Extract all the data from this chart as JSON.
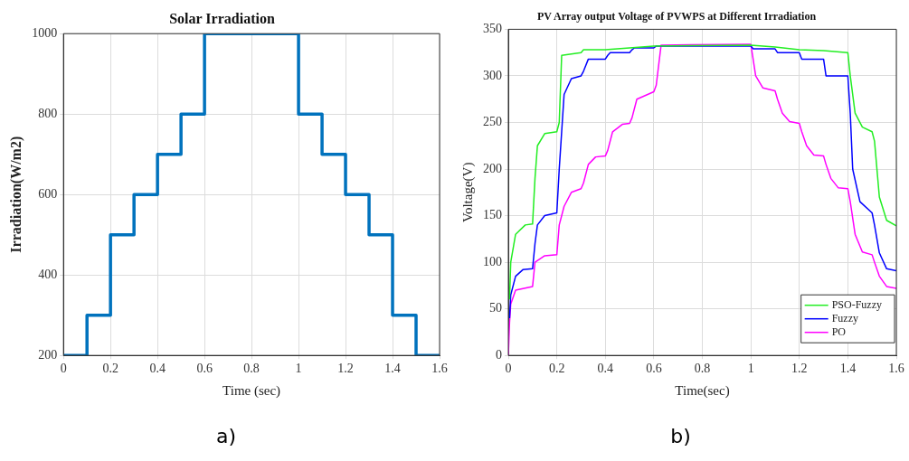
{
  "chart_data": [
    {
      "type": "step",
      "title": "Solar Irradiation",
      "xlabel": "Time (sec)",
      "ylabel": "Irradiation(W/m2)",
      "x": [
        0,
        0.1,
        0.2,
        0.3,
        0.4,
        0.5,
        0.6,
        1.0,
        1.1,
        1.2,
        1.3,
        1.4,
        1.5,
        1.6
      ],
      "values": [
        200,
        300,
        500,
        600,
        700,
        800,
        1000,
        800,
        700,
        600,
        500,
        300,
        200,
        200
      ],
      "color": "#0072bd",
      "xlim": [
        0,
        1.6
      ],
      "xticks": [
        0,
        0.2,
        0.4,
        0.6,
        0.8,
        1,
        1.2,
        1.4,
        1.6
      ],
      "ylim": [
        200,
        1000
      ],
      "yticks": [
        200,
        400,
        600,
        800,
        1000
      ],
      "grid": true,
      "annotations": [
        "a)"
      ]
    },
    {
      "type": "line",
      "title": "PV Array output Voltage of PVWPS at Different Irradiation",
      "xlabel": "Time(sec)",
      "ylabel": "Voltage(V)",
      "series": [
        {
          "name": "PSO-Fuzzy",
          "color": "#22ee22",
          "x": [
            0.005,
            0.01,
            0.03,
            0.07,
            0.1,
            0.11,
            0.12,
            0.15,
            0.2,
            0.21,
            0.22,
            0.3,
            0.31,
            0.4,
            0.5,
            0.6,
            1.0,
            1.1,
            1.2,
            1.3,
            1.4,
            1.41,
            1.43,
            1.46,
            1.5,
            1.51,
            1.53,
            1.56,
            1.6
          ],
          "values": [
            60,
            100,
            130,
            140,
            141,
            190,
            225,
            238,
            240,
            250,
            322,
            325,
            328,
            328,
            330,
            332,
            333,
            331,
            328,
            327,
            325,
            300,
            260,
            245,
            240,
            230,
            170,
            145,
            139
          ]
        },
        {
          "name": "Fuzzy",
          "color": "#0000ff",
          "x": [
            0.005,
            0.01,
            0.03,
            0.06,
            0.1,
            0.11,
            0.12,
            0.15,
            0.2,
            0.21,
            0.23,
            0.26,
            0.3,
            0.31,
            0.33,
            0.4,
            0.41,
            0.42,
            0.5,
            0.51,
            0.52,
            0.6,
            0.61,
            1.0,
            1.01,
            1.1,
            1.11,
            1.2,
            1.21,
            1.3,
            1.31,
            1.4,
            1.41,
            1.42,
            1.45,
            1.5,
            1.51,
            1.53,
            1.56,
            1.6
          ],
          "values": [
            40,
            65,
            85,
            92,
            93,
            120,
            140,
            150,
            153,
            200,
            280,
            297,
            300,
            305,
            318,
            318,
            322,
            325,
            325,
            328,
            330,
            330,
            332,
            332,
            329,
            329,
            325,
            325,
            318,
            318,
            300,
            300,
            260,
            200,
            165,
            153,
            140,
            110,
            93,
            91
          ]
        },
        {
          "name": "PO",
          "color": "#ff00ff",
          "x": [
            0,
            0.005,
            0.01,
            0.03,
            0.1,
            0.11,
            0.15,
            0.2,
            0.21,
            0.23,
            0.26,
            0.3,
            0.31,
            0.33,
            0.36,
            0.4,
            0.41,
            0.43,
            0.47,
            0.5,
            0.51,
            0.53,
            0.6,
            0.61,
            0.63,
            1.0,
            1.02,
            1.05,
            1.1,
            1.11,
            1.13,
            1.16,
            1.2,
            1.21,
            1.23,
            1.26,
            1.3,
            1.31,
            1.33,
            1.36,
            1.4,
            1.41,
            1.43,
            1.46,
            1.5,
            1.51,
            1.53,
            1.56,
            1.6
          ],
          "values": [
            0,
            35,
            55,
            70,
            74,
            100,
            107,
            108,
            140,
            160,
            175,
            179,
            185,
            205,
            213,
            214,
            220,
            240,
            248,
            249,
            255,
            275,
            283,
            290,
            333,
            334,
            300,
            287,
            284,
            275,
            260,
            251,
            249,
            240,
            225,
            215,
            214,
            205,
            190,
            180,
            179,
            165,
            130,
            111,
            108,
            100,
            85,
            74,
            72
          ]
        }
      ],
      "xlim": [
        0,
        1.6
      ],
      "xticks": [
        0,
        0.2,
        0.4,
        0.6,
        0.8,
        1,
        1.2,
        1.4,
        1.6
      ],
      "ylim": [
        0,
        350
      ],
      "yticks": [
        0,
        50,
        100,
        150,
        200,
        250,
        300,
        350
      ],
      "grid": true,
      "legend": "bottom right",
      "annotations": [
        "b)"
      ]
    }
  ]
}
